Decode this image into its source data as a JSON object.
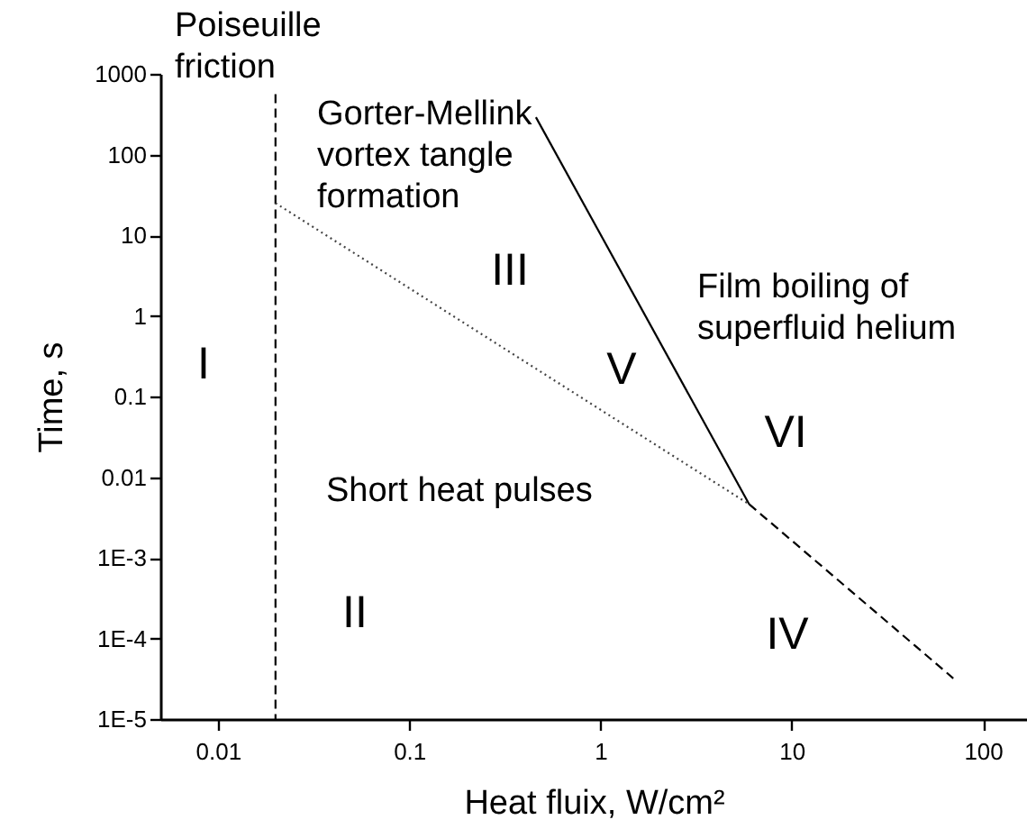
{
  "chart_data": {
    "type": "line",
    "xlabel": "Heat fluix, W/cm²",
    "ylabel": "Time, s",
    "log": "xy",
    "grid": false,
    "xlim": [
      0.005,
      170
    ],
    "xticks": [
      0.01,
      0.1,
      1,
      10,
      100
    ],
    "ylim": [
      1e-05,
      1000
    ],
    "yticks": [
      {
        "value": 1000,
        "label": "1000"
      },
      100,
      10,
      1,
      0.1,
      0.01,
      {
        "value": 0.001,
        "label": "1E-3"
      },
      {
        "value": 0.0001,
        "label": "1E-4"
      },
      {
        "value": 1e-05,
        "label": "1E-5"
      }
    ],
    "series": [
      {
        "color": "#000000",
        "line_style": "dashed",
        "x": [
          0.02,
          0.02
        ],
        "values": [
          560,
          1e-05
        ]
      },
      {
        "color": "#444444",
        "line_style": "dotted",
        "x": [
          0.02,
          6
        ],
        "values": [
          25,
          0.0046
        ]
      },
      {
        "color": "#000000",
        "line_style": "dashed",
        "x": [
          6,
          70
        ],
        "values": [
          0.0046,
          3.2e-05
        ]
      },
      {
        "color": "#000000",
        "line_style": "solid",
        "x": [
          0.46,
          6
        ],
        "values": [
          290,
          0.0046
        ]
      }
    ],
    "annotations": [
      "Poiseuille\nfriction",
      "Gorter-Mellink\nvortex tangle\nformation",
      "Film boiling of\nsuperfluid helium",
      "Short heat pulses",
      "I",
      "II",
      "III",
      "IV",
      "V",
      "VI"
    ]
  }
}
